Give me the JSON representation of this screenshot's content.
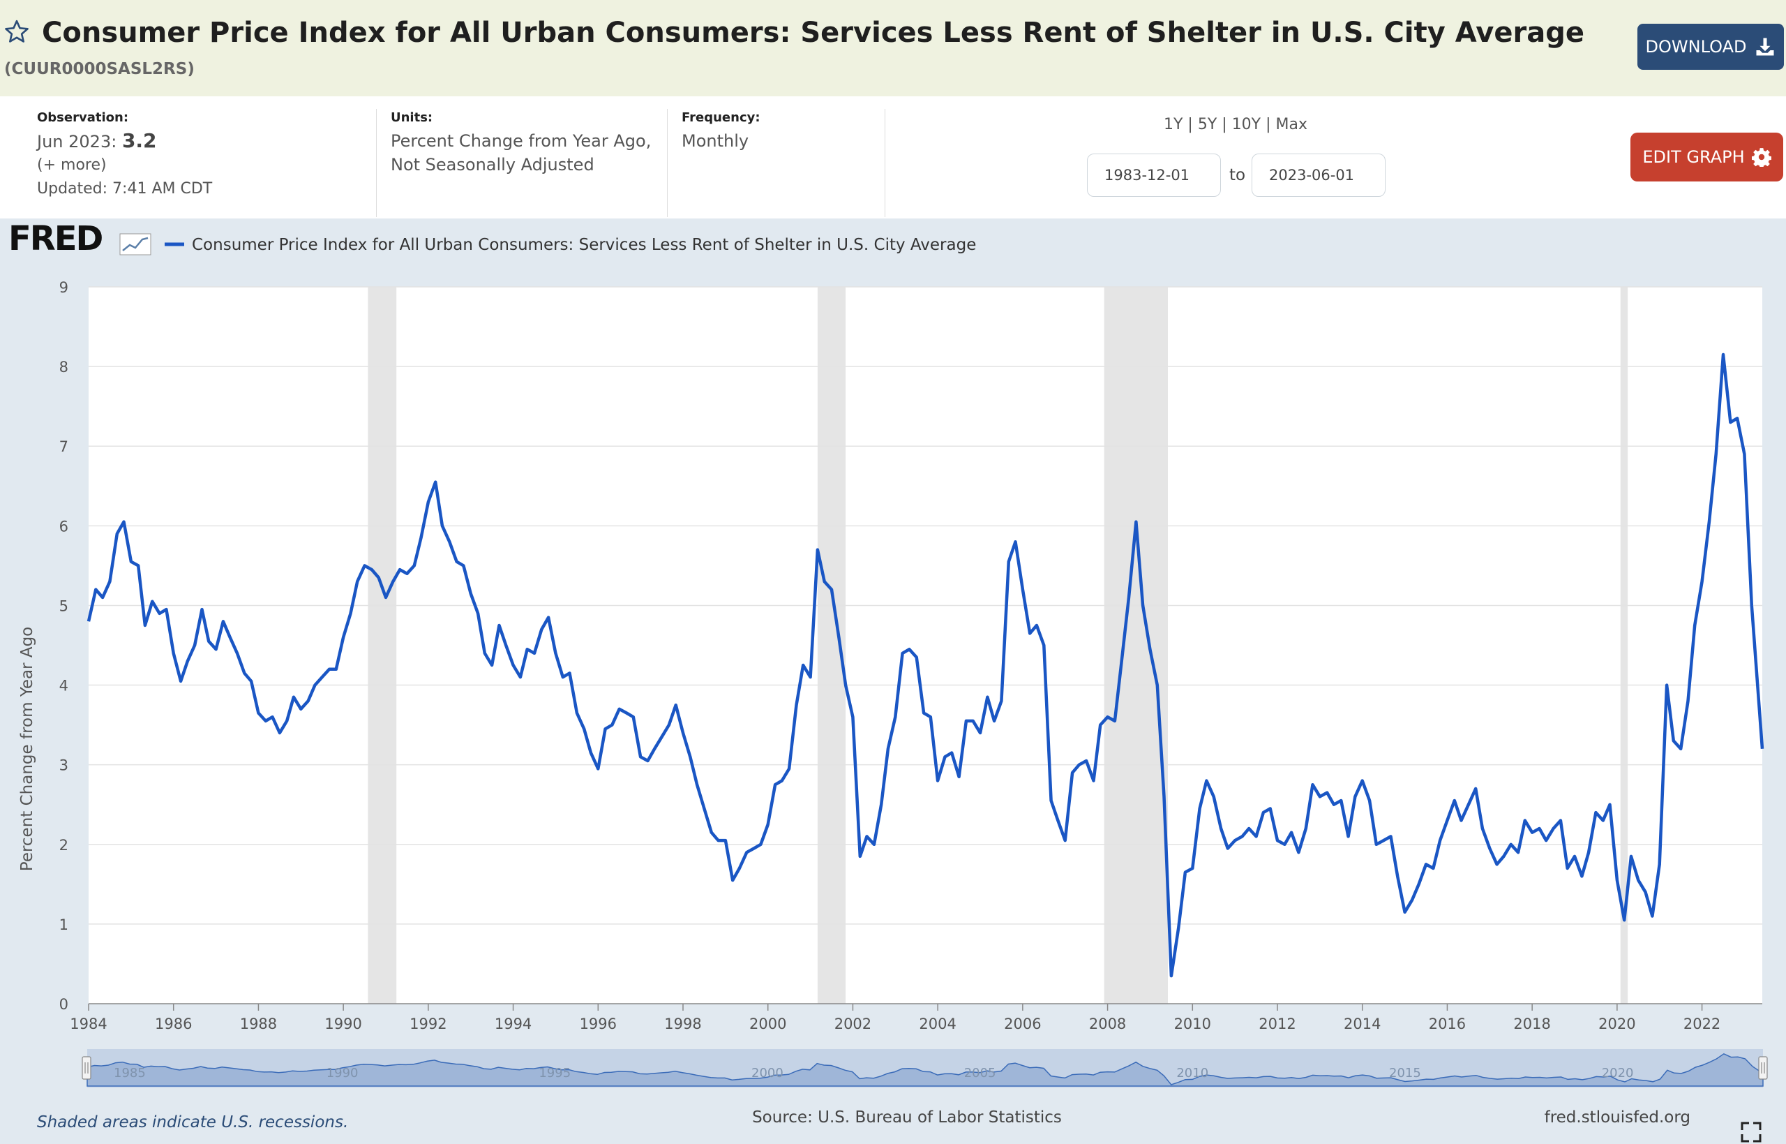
{
  "header": {
    "title": "Consumer Price Index for All Urban Consumers: Services Less Rent of Shelter in U.S. City Average",
    "series_id": "(CUUR0000SASL2RS)",
    "download_label": "DOWNLOAD"
  },
  "meta": {
    "observation_label": "Observation:",
    "observation_date": "Jun 2023:",
    "observation_value": "3.2",
    "more_link": "(+ more)",
    "updated": "Updated: 7:41 AM CDT",
    "units_label": "Units:",
    "units_line1": "Percent Change from Year Ago,",
    "units_line2": "Not Seasonally Adjusted",
    "frequency_label": "Frequency:",
    "frequency_value": "Monthly"
  },
  "range": {
    "links": [
      "1Y",
      "5Y",
      "10Y",
      "Max"
    ],
    "start_date": "1983-12-01",
    "end_date": "2023-06-01",
    "to_label": "to"
  },
  "edit_label": "EDIT GRAPH",
  "colors": {
    "header_bg": "#eff2e0",
    "series_line": "#1a56c4",
    "download_bg": "#2b4c77",
    "edit_bg": "#c6402e",
    "chart_bg": "#e1e9f0",
    "recession_shade": "#e5e5e5"
  },
  "footer": {
    "recession_note": "Shaded areas indicate U.S. recessions.",
    "source": "Source: U.S. Bureau of Labor Statistics",
    "site": "fred.stlouisfed.org"
  },
  "logo_text": "FRED",
  "chart_data": {
    "type": "line",
    "title": "",
    "legend": "Consumer Price Index for All Urban Consumers: Services Less Rent of Shelter in U.S. City Average",
    "legend_position": "top-left",
    "xlabel": "",
    "ylabel": "Percent Change from Year Ago",
    "xlim": [
      1984.0,
      2023.42
    ],
    "ylim": [
      0,
      9
    ],
    "grid": true,
    "x_ticks": [
      "1984",
      "1986",
      "1988",
      "1990",
      "1992",
      "1994",
      "1996",
      "1998",
      "2000",
      "2002",
      "2004",
      "2006",
      "2008",
      "2010",
      "2012",
      "2014",
      "2016",
      "2018",
      "2020",
      "2022"
    ],
    "y_ticks": [
      "0",
      "1",
      "2",
      "3",
      "4",
      "5",
      "6",
      "7",
      "8",
      "9"
    ],
    "navigator_labels": [
      "1985",
      "1990",
      "1995",
      "2000",
      "2005",
      "2010",
      "2015",
      "2020"
    ],
    "recessions": [
      {
        "start": 1990.58,
        "end": 1991.25
      },
      {
        "start": 2001.17,
        "end": 2001.83
      },
      {
        "start": 2007.92,
        "end": 2009.42
      },
      {
        "start": 2020.08,
        "end": 2020.25
      }
    ],
    "series": [
      {
        "name": "Consumer Price Index for All Urban Consumers: Services Less Rent of Shelter in U.S. City Average",
        "points": [
          [
            1984.0,
            4.8
          ],
          [
            1984.17,
            5.2
          ],
          [
            1984.33,
            5.1
          ],
          [
            1984.5,
            5.3
          ],
          [
            1984.67,
            5.9
          ],
          [
            1984.83,
            6.05
          ],
          [
            1985.0,
            5.55
          ],
          [
            1985.17,
            5.5
          ],
          [
            1985.33,
            4.75
          ],
          [
            1985.5,
            5.05
          ],
          [
            1985.67,
            4.9
          ],
          [
            1985.83,
            4.95
          ],
          [
            1986.0,
            4.4
          ],
          [
            1986.17,
            4.05
          ],
          [
            1986.33,
            4.3
          ],
          [
            1986.5,
            4.5
          ],
          [
            1986.67,
            4.95
          ],
          [
            1986.83,
            4.55
          ],
          [
            1987.0,
            4.45
          ],
          [
            1987.17,
            4.8
          ],
          [
            1987.33,
            4.6
          ],
          [
            1987.5,
            4.4
          ],
          [
            1987.67,
            4.15
          ],
          [
            1987.83,
            4.05
          ],
          [
            1988.0,
            3.65
          ],
          [
            1988.17,
            3.55
          ],
          [
            1988.33,
            3.6
          ],
          [
            1988.5,
            3.4
          ],
          [
            1988.67,
            3.55
          ],
          [
            1988.83,
            3.85
          ],
          [
            1989.0,
            3.7
          ],
          [
            1989.17,
            3.8
          ],
          [
            1989.33,
            4.0
          ],
          [
            1989.5,
            4.1
          ],
          [
            1989.67,
            4.2
          ],
          [
            1989.83,
            4.2
          ],
          [
            1990.0,
            4.6
          ],
          [
            1990.17,
            4.9
          ],
          [
            1990.33,
            5.3
          ],
          [
            1990.5,
            5.5
          ],
          [
            1990.67,
            5.45
          ],
          [
            1990.83,
            5.35
          ],
          [
            1991.0,
            5.1
          ],
          [
            1991.17,
            5.3
          ],
          [
            1991.33,
            5.45
          ],
          [
            1991.5,
            5.4
          ],
          [
            1991.67,
            5.5
          ],
          [
            1991.83,
            5.85
          ],
          [
            1992.0,
            6.3
          ],
          [
            1992.17,
            6.55
          ],
          [
            1992.33,
            6.0
          ],
          [
            1992.5,
            5.8
          ],
          [
            1992.67,
            5.55
          ],
          [
            1992.83,
            5.5
          ],
          [
            1993.0,
            5.15
          ],
          [
            1993.17,
            4.9
          ],
          [
            1993.33,
            4.4
          ],
          [
            1993.5,
            4.25
          ],
          [
            1993.67,
            4.75
          ],
          [
            1993.83,
            4.5
          ],
          [
            1994.0,
            4.25
          ],
          [
            1994.17,
            4.1
          ],
          [
            1994.33,
            4.45
          ],
          [
            1994.5,
            4.4
          ],
          [
            1994.67,
            4.7
          ],
          [
            1994.83,
            4.85
          ],
          [
            1995.0,
            4.4
          ],
          [
            1995.17,
            4.1
          ],
          [
            1995.33,
            4.15
          ],
          [
            1995.5,
            3.65
          ],
          [
            1995.67,
            3.45
          ],
          [
            1995.83,
            3.15
          ],
          [
            1996.0,
            2.95
          ],
          [
            1996.17,
            3.45
          ],
          [
            1996.33,
            3.5
          ],
          [
            1996.5,
            3.7
          ],
          [
            1996.67,
            3.65
          ],
          [
            1996.83,
            3.6
          ],
          [
            1997.0,
            3.1
          ],
          [
            1997.17,
            3.05
          ],
          [
            1997.33,
            3.2
          ],
          [
            1997.5,
            3.35
          ],
          [
            1997.67,
            3.5
          ],
          [
            1997.83,
            3.75
          ],
          [
            1998.0,
            3.4
          ],
          [
            1998.17,
            3.1
          ],
          [
            1998.33,
            2.75
          ],
          [
            1998.5,
            2.45
          ],
          [
            1998.67,
            2.15
          ],
          [
            1998.83,
            2.05
          ],
          [
            1999.0,
            2.05
          ],
          [
            1999.17,
            1.55
          ],
          [
            1999.33,
            1.7
          ],
          [
            1999.5,
            1.9
          ],
          [
            1999.67,
            1.95
          ],
          [
            1999.83,
            2.0
          ],
          [
            2000.0,
            2.25
          ],
          [
            2000.17,
            2.75
          ],
          [
            2000.33,
            2.8
          ],
          [
            2000.5,
            2.95
          ],
          [
            2000.67,
            3.75
          ],
          [
            2000.83,
            4.25
          ],
          [
            2001.0,
            4.1
          ],
          [
            2001.17,
            5.7
          ],
          [
            2001.33,
            5.3
          ],
          [
            2001.5,
            5.2
          ],
          [
            2001.67,
            4.6
          ],
          [
            2001.83,
            4.0
          ],
          [
            2002.0,
            3.6
          ],
          [
            2002.17,
            1.85
          ],
          [
            2002.33,
            2.1
          ],
          [
            2002.5,
            2.0
          ],
          [
            2002.67,
            2.5
          ],
          [
            2002.83,
            3.2
          ],
          [
            2003.0,
            3.6
          ],
          [
            2003.17,
            4.4
          ],
          [
            2003.33,
            4.45
          ],
          [
            2003.5,
            4.35
          ],
          [
            2003.67,
            3.65
          ],
          [
            2003.83,
            3.6
          ],
          [
            2004.0,
            2.8
          ],
          [
            2004.17,
            3.1
          ],
          [
            2004.33,
            3.15
          ],
          [
            2004.5,
            2.85
          ],
          [
            2004.67,
            3.55
          ],
          [
            2004.83,
            3.55
          ],
          [
            2005.0,
            3.4
          ],
          [
            2005.17,
            3.85
          ],
          [
            2005.33,
            3.55
          ],
          [
            2005.5,
            3.8
          ],
          [
            2005.67,
            5.55
          ],
          [
            2005.83,
            5.8
          ],
          [
            2006.0,
            5.2
          ],
          [
            2006.17,
            4.65
          ],
          [
            2006.33,
            4.75
          ],
          [
            2006.5,
            4.5
          ],
          [
            2006.67,
            2.55
          ],
          [
            2006.83,
            2.3
          ],
          [
            2007.0,
            2.05
          ],
          [
            2007.17,
            2.9
          ],
          [
            2007.33,
            3.0
          ],
          [
            2007.5,
            3.05
          ],
          [
            2007.67,
            2.8
          ],
          [
            2007.83,
            3.5
          ],
          [
            2008.0,
            3.6
          ],
          [
            2008.17,
            3.55
          ],
          [
            2008.33,
            4.3
          ],
          [
            2008.5,
            5.1
          ],
          [
            2008.67,
            6.05
          ],
          [
            2008.83,
            5.0
          ],
          [
            2009.0,
            4.45
          ],
          [
            2009.17,
            4.0
          ],
          [
            2009.33,
            2.6
          ],
          [
            2009.5,
            0.35
          ],
          [
            2009.67,
            0.95
          ],
          [
            2009.83,
            1.65
          ],
          [
            2010.0,
            1.7
          ],
          [
            2010.17,
            2.45
          ],
          [
            2010.33,
            2.8
          ],
          [
            2010.5,
            2.6
          ],
          [
            2010.67,
            2.2
          ],
          [
            2010.83,
            1.95
          ],
          [
            2011.0,
            2.05
          ],
          [
            2011.17,
            2.1
          ],
          [
            2011.33,
            2.2
          ],
          [
            2011.5,
            2.1
          ],
          [
            2011.67,
            2.4
          ],
          [
            2011.83,
            2.45
          ],
          [
            2012.0,
            2.05
          ],
          [
            2012.17,
            2.0
          ],
          [
            2012.33,
            2.15
          ],
          [
            2012.5,
            1.9
          ],
          [
            2012.67,
            2.2
          ],
          [
            2012.83,
            2.75
          ],
          [
            2013.0,
            2.6
          ],
          [
            2013.17,
            2.65
          ],
          [
            2013.33,
            2.5
          ],
          [
            2013.5,
            2.55
          ],
          [
            2013.67,
            2.1
          ],
          [
            2013.83,
            2.6
          ],
          [
            2014.0,
            2.8
          ],
          [
            2014.17,
            2.55
          ],
          [
            2014.33,
            2.0
          ],
          [
            2014.5,
            2.05
          ],
          [
            2014.67,
            2.1
          ],
          [
            2014.83,
            1.6
          ],
          [
            2015.0,
            1.15
          ],
          [
            2015.17,
            1.3
          ],
          [
            2015.33,
            1.5
          ],
          [
            2015.5,
            1.75
          ],
          [
            2015.67,
            1.7
          ],
          [
            2015.83,
            2.05
          ],
          [
            2016.0,
            2.3
          ],
          [
            2016.17,
            2.55
          ],
          [
            2016.33,
            2.3
          ],
          [
            2016.5,
            2.5
          ],
          [
            2016.67,
            2.7
          ],
          [
            2016.83,
            2.2
          ],
          [
            2017.0,
            1.95
          ],
          [
            2017.17,
            1.75
          ],
          [
            2017.33,
            1.85
          ],
          [
            2017.5,
            2.0
          ],
          [
            2017.67,
            1.9
          ],
          [
            2017.83,
            2.3
          ],
          [
            2018.0,
            2.15
          ],
          [
            2018.17,
            2.2
          ],
          [
            2018.33,
            2.05
          ],
          [
            2018.5,
            2.2
          ],
          [
            2018.67,
            2.3
          ],
          [
            2018.83,
            1.7
          ],
          [
            2019.0,
            1.85
          ],
          [
            2019.17,
            1.6
          ],
          [
            2019.33,
            1.9
          ],
          [
            2019.5,
            2.4
          ],
          [
            2019.67,
            2.3
          ],
          [
            2019.83,
            2.5
          ],
          [
            2020.0,
            1.55
          ],
          [
            2020.17,
            1.05
          ],
          [
            2020.33,
            1.85
          ],
          [
            2020.5,
            1.55
          ],
          [
            2020.67,
            1.4
          ],
          [
            2020.83,
            1.1
          ],
          [
            2021.0,
            1.75
          ],
          [
            2021.17,
            4.0
          ],
          [
            2021.33,
            3.3
          ],
          [
            2021.5,
            3.2
          ],
          [
            2021.67,
            3.8
          ],
          [
            2021.83,
            4.75
          ],
          [
            2022.0,
            5.3
          ],
          [
            2022.17,
            6.05
          ],
          [
            2022.33,
            6.9
          ],
          [
            2022.5,
            8.15
          ],
          [
            2022.67,
            7.3
          ],
          [
            2022.83,
            7.35
          ],
          [
            2023.0,
            6.9
          ],
          [
            2023.17,
            5.0
          ],
          [
            2023.42,
            3.2
          ]
        ]
      }
    ]
  }
}
